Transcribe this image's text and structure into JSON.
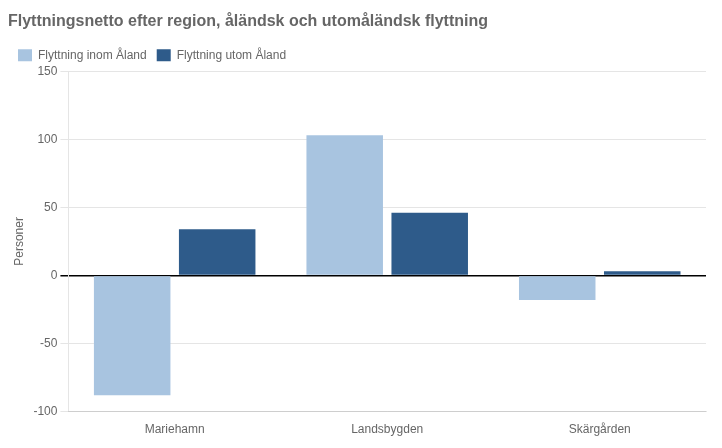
{
  "chart_data": {
    "type": "bar",
    "title": "Flyttningsnetto efter region, åländsk och utomåländsk flyttning",
    "ylabel": "Personer",
    "categories": [
      "Mariehamn",
      "Landsbygden",
      "Skärgården"
    ],
    "series": [
      {
        "name": "Flyttning inom Åland",
        "values": [
          -88,
          103,
          -18
        ],
        "color": "#a8c4e0"
      },
      {
        "name": "Flyttning utom Åland",
        "values": [
          34,
          46,
          3
        ],
        "color": "#2e5b8a"
      }
    ],
    "ylim": [
      -100,
      150
    ],
    "yticks": [
      -100,
      -50,
      0,
      50,
      100,
      150
    ],
    "grid": true,
    "legend": "upper left"
  }
}
